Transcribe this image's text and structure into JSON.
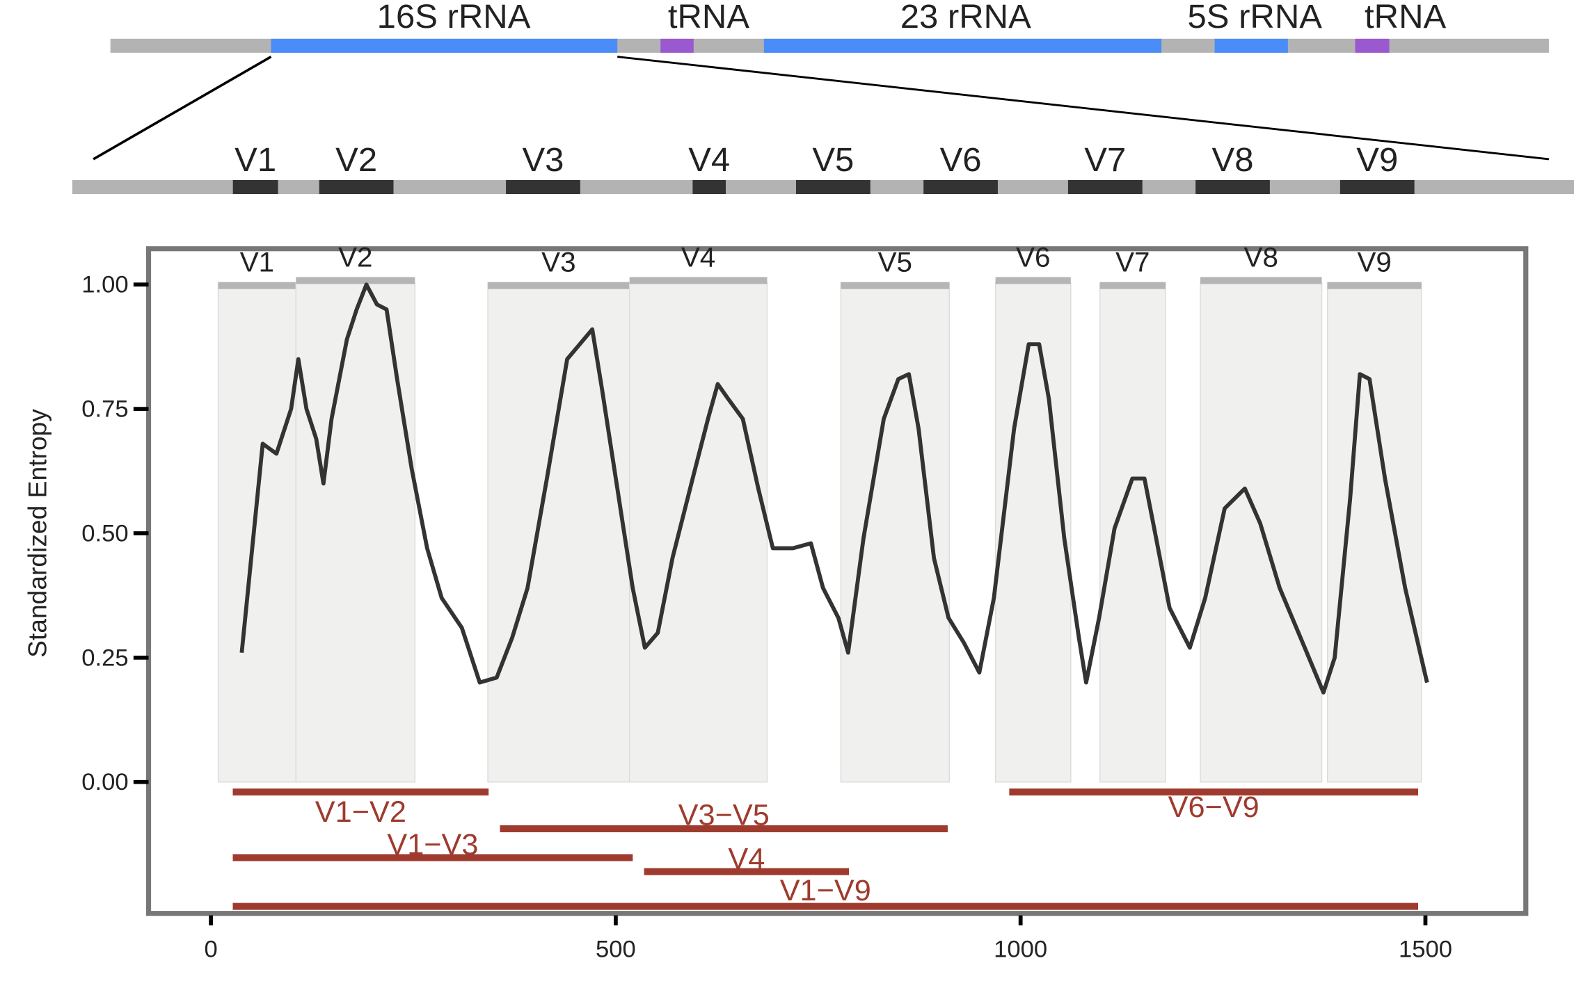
{
  "top_diagram": {
    "genes": [
      "16S rRNA",
      "tRNA",
      "23 rRNA",
      "5S rRNA",
      "tRNA"
    ],
    "regions": [
      "V1",
      "V2",
      "V3",
      "V4",
      "V5",
      "V6",
      "V7",
      "V8",
      "V9"
    ]
  },
  "chart_data": {
    "type": "line",
    "y_label": "Standardized Entropy",
    "x": [
      38,
      64,
      81,
      99,
      108,
      118,
      130,
      139,
      149,
      168,
      180,
      192,
      205,
      217,
      230,
      248,
      267,
      285,
      310,
      332,
      353,
      372,
      391,
      415,
      440,
      471,
      483,
      502,
      521,
      536,
      552,
      570,
      595,
      614,
      626,
      639,
      657,
      676,
      694,
      719,
      741,
      756,
      775,
      787,
      806,
      831,
      849,
      862,
      874,
      893,
      911,
      930,
      949,
      967,
      992,
      1010,
      1023,
      1035,
      1054,
      1072,
      1081,
      1097,
      1116,
      1138,
      1153,
      1165,
      1184,
      1209,
      1228,
      1252,
      1277,
      1296,
      1320,
      1351,
      1374,
      1388,
      1407,
      1419,
      1431,
      1450,
      1475,
      1502
    ],
    "series": [
      {
        "color": "#333333",
        "values": [
          0.26,
          0.68,
          0.66,
          0.75,
          0.85,
          0.75,
          0.69,
          0.6,
          0.73,
          0.89,
          0.95,
          1.0,
          0.96,
          0.95,
          0.81,
          0.63,
          0.47,
          0.37,
          0.31,
          0.2,
          0.21,
          0.29,
          0.39,
          0.61,
          0.85,
          0.91,
          0.79,
          0.59,
          0.39,
          0.27,
          0.3,
          0.45,
          0.61,
          0.73,
          0.8,
          0.77,
          0.73,
          0.59,
          0.47,
          0.47,
          0.48,
          0.39,
          0.33,
          0.26,
          0.49,
          0.73,
          0.81,
          0.82,
          0.71,
          0.45,
          0.33,
          0.28,
          0.22,
          0.37,
          0.71,
          0.88,
          0.88,
          0.77,
          0.49,
          0.29,
          0.2,
          0.33,
          0.51,
          0.61,
          0.61,
          0.51,
          0.35,
          0.27,
          0.37,
          0.55,
          0.59,
          0.52,
          0.39,
          0.27,
          0.18,
          0.25,
          0.57,
          0.82,
          0.81,
          0.61,
          0.39,
          0.2
        ]
      }
    ],
    "regions": [
      {
        "name": "V1",
        "start": 9,
        "end": 105
      },
      {
        "name": "V2",
        "start": 105,
        "end": 252
      },
      {
        "name": "V3",
        "start": 342,
        "end": 517
      },
      {
        "name": "V4",
        "start": 517,
        "end": 687
      },
      {
        "name": "V5",
        "start": 778,
        "end": 912
      },
      {
        "name": "V6",
        "start": 969,
        "end": 1062
      },
      {
        "name": "V7",
        "start": 1098,
        "end": 1179
      },
      {
        "name": "V8",
        "start": 1222,
        "end": 1372
      },
      {
        "name": "V9",
        "start": 1379,
        "end": 1495
      }
    ],
    "amplicons": [
      {
        "name": "V1−V2",
        "start": 27,
        "end": 343,
        "color": "#9e3b2e"
      },
      {
        "name": "V3−V5",
        "start": 357,
        "end": 910,
        "color": "#9e3b2e"
      },
      {
        "name": "V1−V3",
        "start": 27,
        "end": 521,
        "color": "#9e3b2e"
      },
      {
        "name": "V4",
        "start": 535,
        "end": 788,
        "color": "#9e3b2e"
      },
      {
        "name": "V1−V9",
        "start": 27,
        "end": 1491,
        "color": "#9e3b2e"
      },
      {
        "name": "V6−V9",
        "start": 986,
        "end": 1491,
        "color": "#9e3b2e"
      }
    ],
    "xlim": [
      -77,
      1624
    ],
    "ylim": [
      -0.264,
      1.072
    ],
    "xticks": [
      0,
      500,
      1000,
      1500
    ],
    "yticks": [
      {
        "value": 0,
        "label": "0.00"
      },
      {
        "value": 0.25,
        "label": "0.25"
      },
      {
        "value": 0.5,
        "label": "0.50"
      },
      {
        "value": 0.75,
        "label": "0.75"
      },
      {
        "value": 1,
        "label": "1.00"
      }
    ]
  }
}
